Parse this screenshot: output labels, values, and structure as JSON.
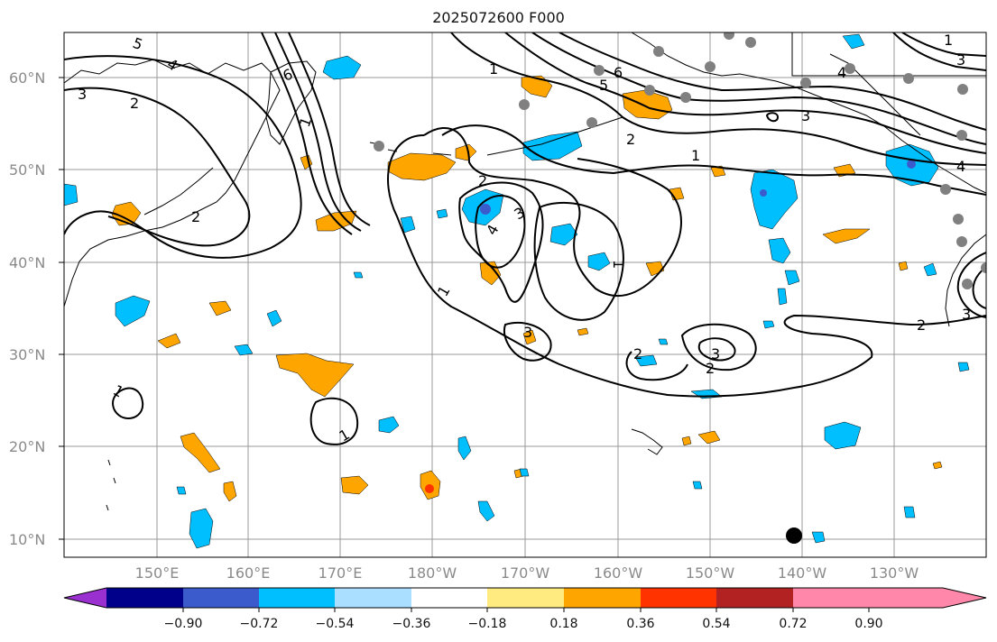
{
  "title": "2025072600 F000",
  "axes": {
    "lat_labels": [
      "60°N",
      "50°N",
      "40°N",
      "30°N",
      "20°N",
      "10°N"
    ],
    "lon_labels": [
      "150°E",
      "160°E",
      "170°E",
      "180°W",
      "170°W",
      "160°W",
      "150°W",
      "140°W",
      "130°W"
    ]
  },
  "contour_labels": [
    "1",
    "2",
    "3",
    "4",
    "5",
    "6"
  ],
  "colorbar": {
    "ticks": [
      "−0.90",
      "−0.72",
      "−0.54",
      "−0.36",
      "−0.18",
      "0.18",
      "0.36",
      "0.54",
      "0.72",
      "0.90"
    ],
    "colors": [
      "#9b30d0",
      "#00008b",
      "#3b5bcc",
      "#00bfff",
      "#aadfff",
      "#ffffff",
      "#ffeb80",
      "#ffa500",
      "#ff3300",
      "#b22222",
      "#ff88aa"
    ]
  },
  "colors": {
    "positive_fill": "#ffa500",
    "negative_fill": "#00bfff",
    "contour": "#000000",
    "station": "#808080",
    "grid": "#999999"
  }
}
